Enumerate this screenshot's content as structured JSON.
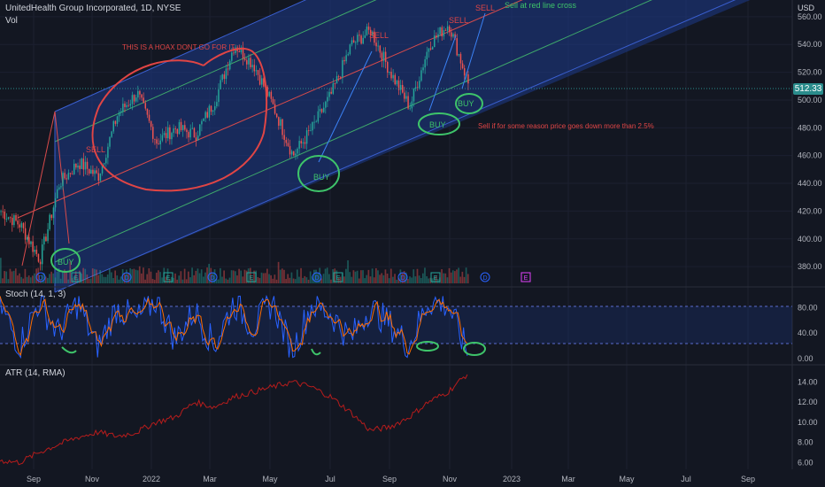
{
  "header": {
    "title": "UnitedHealth Group Incorporated, 1D, NYSE",
    "vol_label": "Vol",
    "currency": "USD"
  },
  "price_badge": "512.33",
  "stoch_label": "Stoch (14, 1, 3)",
  "atr_label": "ATR (14, RMA)",
  "colors": {
    "bg": "#131722",
    "channel_fill": "#1e3a8a",
    "channel_blue": "#3a5fd0",
    "channel_green": "#3ea86b",
    "channel_red": "#d94b4b",
    "candle_up": "#26a69a",
    "candle_down": "#ef5350",
    "stoch_k": "#2962ff",
    "stoch_d": "#ff6d00",
    "atr": "#b71c1c",
    "annotation_red": "#e04545",
    "annotation_green": "#3ec46a"
  },
  "chart_data": [
    {
      "type": "candlestick",
      "title": "UnitedHealth Group Incorporated, 1D, NYSE",
      "yaxis_ticks": [
        "560.00",
        "540.00",
        "520.00",
        "500.00",
        "480.00",
        "460.00",
        "440.00",
        "420.00",
        "400.00",
        "380.00"
      ],
      "ylim": [
        368,
        572
      ],
      "xaxis_ticks": [
        "Sep",
        "Nov",
        "2022",
        "Mar",
        "May",
        "Jul",
        "Sep",
        "Nov",
        "2023",
        "Mar",
        "May",
        "Jul",
        "Sep"
      ],
      "last_price": 512.33,
      "event_markers": [
        "D",
        "E",
        "D",
        "E",
        "D",
        "E",
        "D",
        "E",
        "D",
        "E",
        "D",
        "E",
        "D",
        "E"
      ],
      "future_marker": "E",
      "price_path": [
        {
          "x": "Aug 2021",
          "y": 420
        },
        {
          "x": "Aug 2021",
          "y": 410
        },
        {
          "x": "Sep 2021",
          "y": 385
        },
        {
          "x": "Oct 2021",
          "y": 440
        },
        {
          "x": "Oct 2021",
          "y": 455
        },
        {
          "x": "Nov 2021",
          "y": 445
        },
        {
          "x": "Dec 2021",
          "y": 490
        },
        {
          "x": "Dec 2021",
          "y": 505
        },
        {
          "x": "Jan 2022",
          "y": 470
        },
        {
          "x": "Feb 2022",
          "y": 480
        },
        {
          "x": "Feb 2022",
          "y": 475
        },
        {
          "x": "Mar 2022",
          "y": 500
        },
        {
          "x": "Apr 2022",
          "y": 540
        },
        {
          "x": "Apr 2022",
          "y": 525
        },
        {
          "x": "May 2022",
          "y": 495
        },
        {
          "x": "Jun 2022",
          "y": 460
        },
        {
          "x": "Jun 2022",
          "y": 480
        },
        {
          "x": "Jul 2022",
          "y": 505
        },
        {
          "x": "Aug 2022",
          "y": 540
        },
        {
          "x": "Aug 2022",
          "y": 550
        },
        {
          "x": "Sep 2022",
          "y": 520
        },
        {
          "x": "Oct 2022",
          "y": 495
        },
        {
          "x": "Oct 2022",
          "y": 540
        },
        {
          "x": "Nov 2022",
          "y": 555
        },
        {
          "x": "Nov 2022",
          "y": 512
        }
      ],
      "annotations": {
        "hoax": "THIS IS A HOAX DONT GO FOR IT",
        "sell_cross": "Sell at red line cross",
        "sell_pct": "Sell if for some reason price goes down more than 2.5%",
        "sell": "SELL",
        "buy": "BUY"
      }
    },
    {
      "type": "line",
      "title": "Stoch (14, 1, 3)",
      "yaxis_ticks": [
        "80.00",
        "40.00",
        "0.00"
      ],
      "ylim": [
        0,
        100
      ],
      "bands": [
        20,
        80
      ],
      "series": [
        {
          "values": [
            85,
            20,
            90,
            40,
            88,
            15,
            80,
            60,
            92,
            30,
            75,
            20,
            88,
            50,
            90,
            10,
            85,
            70,
            30,
            80,
            55,
            20,
            90,
            85,
            10
          ]
        }
      ]
    },
    {
      "type": "line",
      "title": "ATR (14, RMA)",
      "yaxis_ticks": [
        "14.00",
        "12.00",
        "10.00",
        "8.00",
        "6.00"
      ],
      "ylim": [
        5.5,
        15
      ],
      "series": [
        {
          "values": [
            6.2,
            6.0,
            7.0,
            7.8,
            8.5,
            9.0,
            8.6,
            9.0,
            10.0,
            10.5,
            12.0,
            11.5,
            12.5,
            13.0,
            13.5,
            14.0,
            13.5,
            12.5,
            11.0,
            9.2,
            9.5,
            10.5,
            12.0,
            13.0,
            14.8
          ]
        }
      ]
    }
  ]
}
